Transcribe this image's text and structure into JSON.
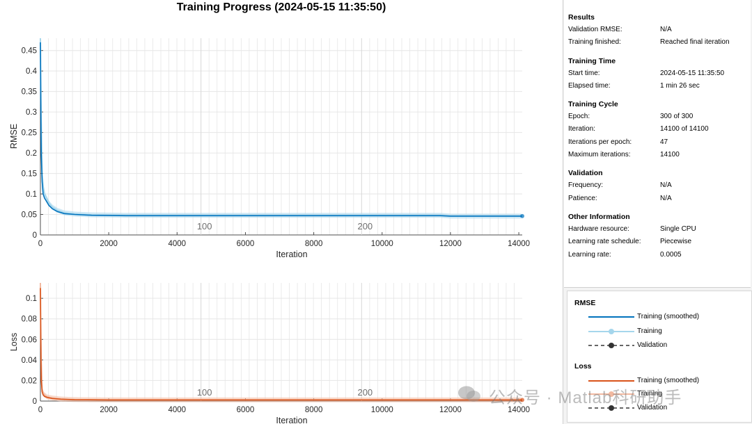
{
  "title": "Training Progress (2024-05-15 11:35:50)",
  "chart_data": [
    {
      "type": "line",
      "ylabel": "RMSE",
      "xlabel": "Iteration",
      "xlim": [
        0,
        14100
      ],
      "ylim": [
        0,
        0.48
      ],
      "xticks": [
        0,
        2000,
        4000,
        6000,
        8000,
        10000,
        12000,
        14000
      ],
      "yticks": [
        0,
        0.05,
        0.1,
        0.15,
        0.2,
        0.25,
        0.3,
        0.35,
        0.4,
        0.45
      ],
      "epoch_markers": [
        {
          "iteration": 4700,
          "label": "100"
        },
        {
          "iteration": 9400,
          "label": "200"
        }
      ],
      "series": [
        {
          "name": "Training (smoothed)",
          "color": "#0072bd",
          "x": [
            0,
            10,
            25,
            50,
            80,
            120,
            180,
            250,
            350,
            500,
            700,
            1000,
            1500,
            2500,
            4000,
            6000,
            8000,
            10000,
            11700,
            12000,
            14100
          ],
          "y": [
            0.47,
            0.33,
            0.2,
            0.13,
            0.1,
            0.09,
            0.082,
            0.072,
            0.064,
            0.057,
            0.052,
            0.05,
            0.048,
            0.047,
            0.047,
            0.047,
            0.047,
            0.047,
            0.047,
            0.046,
            0.046
          ]
        },
        {
          "name": "Training",
          "color": "#a5d6ec",
          "x": [
            0,
            10,
            25,
            50,
            80,
            120,
            180,
            250,
            350,
            500,
            700,
            1000,
            1500,
            2500,
            4000,
            6000,
            8000,
            10000,
            11700,
            12000,
            14100
          ],
          "y": [
            0.48,
            0.4,
            0.28,
            0.15,
            0.12,
            0.1,
            0.09,
            0.078,
            0.068,
            0.06,
            0.054,
            0.051,
            0.049,
            0.048,
            0.048,
            0.048,
            0.048,
            0.048,
            0.048,
            0.046,
            0.046
          ]
        }
      ]
    },
    {
      "type": "line",
      "ylabel": "Loss",
      "xlabel": "Iteration",
      "xlim": [
        0,
        14100
      ],
      "ylim": [
        0,
        0.115
      ],
      "xticks": [
        0,
        2000,
        4000,
        6000,
        8000,
        10000,
        12000,
        14000
      ],
      "yticks": [
        0,
        0.02,
        0.04,
        0.06,
        0.08,
        0.1
      ],
      "epoch_markers": [
        {
          "iteration": 4700,
          "label": "100"
        },
        {
          "iteration": 9400,
          "label": "200"
        }
      ],
      "series": [
        {
          "name": "Training (smoothed)",
          "color": "#d95319",
          "x": [
            0,
            10,
            25,
            50,
            80,
            120,
            200,
            350,
            600,
            1000,
            2000,
            4000,
            8000,
            14100
          ],
          "y": [
            0.11,
            0.06,
            0.02,
            0.009,
            0.006,
            0.0045,
            0.0035,
            0.0025,
            0.0018,
            0.0013,
            0.0011,
            0.0011,
            0.0011,
            0.0011
          ]
        },
        {
          "name": "Training",
          "color": "#f2b9a0",
          "x": [
            0,
            10,
            25,
            50,
            80,
            120,
            200,
            350,
            600,
            1000,
            2000,
            4000,
            8000,
            14100
          ],
          "y": [
            0.115,
            0.08,
            0.04,
            0.012,
            0.008,
            0.006,
            0.004,
            0.003,
            0.002,
            0.0014,
            0.0012,
            0.0012,
            0.0012,
            0.0012
          ]
        }
      ]
    }
  ],
  "info": {
    "results": {
      "title": "Results",
      "rows": [
        {
          "label": "Validation RMSE:",
          "value": "N/A"
        },
        {
          "label": "Training finished:",
          "value": "Reached final iteration"
        }
      ]
    },
    "time": {
      "title": "Training Time",
      "rows": [
        {
          "label": "Start time:",
          "value": "2024-05-15 11:35:50"
        },
        {
          "label": "Elapsed time:",
          "value": "1 min 26 sec"
        }
      ]
    },
    "cycle": {
      "title": "Training Cycle",
      "rows": [
        {
          "label": "Epoch:",
          "value": "300 of 300"
        },
        {
          "label": "Iteration:",
          "value": "14100 of 14100"
        },
        {
          "label": "Iterations per epoch:",
          "value": "47"
        },
        {
          "label": "Maximum iterations:",
          "value": "14100"
        }
      ]
    },
    "validation": {
      "title": "Validation",
      "rows": [
        {
          "label": "Frequency:",
          "value": "N/A"
        },
        {
          "label": "Patience:",
          "value": "N/A"
        }
      ]
    },
    "other": {
      "title": "Other Information",
      "rows": [
        {
          "label": "Hardware resource:",
          "value": "Single CPU"
        },
        {
          "label": "Learning rate schedule:",
          "value": "Piecewise"
        },
        {
          "label": "Learning rate:",
          "value": "0.0005"
        }
      ]
    }
  },
  "legend": {
    "rmse": {
      "title": "RMSE",
      "smoothed": "Training (smoothed)",
      "training": "Training",
      "validation": "Validation",
      "color_smoothed": "#0072bd",
      "color_training": "#a5d6ec"
    },
    "loss": {
      "title": "Loss",
      "smoothed": "Training (smoothed)",
      "training": "Training",
      "validation": "Validation",
      "color_smoothed": "#d95319",
      "color_training": "#f2b9a0"
    },
    "validation_color": "#333333"
  },
  "watermark": "公众号 · Matlab科研助手"
}
